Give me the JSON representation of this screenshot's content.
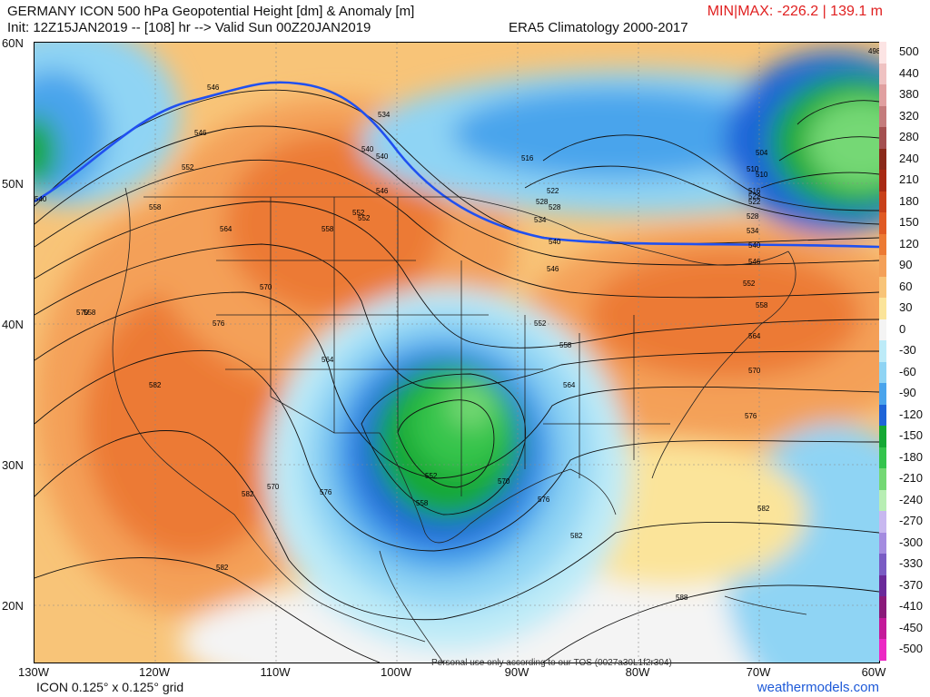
{
  "header": {
    "title": "GERMANY ICON 500 hPa Geopotential Height [dm] & Anomaly [m]",
    "init_line": "Init: 12Z15JAN2019 -- [108] hr --> Valid Sun 00Z20JAN2019",
    "climatology": "ERA5 Climatology 2000-2017",
    "minmax": "MIN|MAX: -226.2 | 139.1 m"
  },
  "footer": {
    "grid_info": "ICON 0.125° x 0.125° grid",
    "disclaimer": "Personal use only according to our TOS (0027a30L1f2r304)",
    "website": "weathermodels.com"
  },
  "axes": {
    "lat_labels": [
      "60N",
      "50N",
      "40N",
      "30N",
      "20N"
    ],
    "lon_labels": [
      "130W",
      "120W",
      "110W",
      "100W",
      "90W",
      "80W",
      "70W",
      "60W"
    ]
  },
  "legend": {
    "labels": [
      "500",
      "440",
      "380",
      "320",
      "280",
      "240",
      "210",
      "180",
      "150",
      "120",
      "90",
      "60",
      "30",
      "0",
      "-30",
      "-60",
      "-90",
      "-120",
      "-150",
      "-180",
      "-210",
      "-240",
      "-270",
      "-300",
      "-330",
      "-370",
      "-410",
      "-450",
      "-500"
    ],
    "colors": [
      "#fce4e4",
      "#efc2c2",
      "#e0a0a0",
      "#c47c7c",
      "#a45050",
      "#8a2a1a",
      "#a82a14",
      "#c8401a",
      "#e05a24",
      "#ec7a34",
      "#f4a058",
      "#f8c478",
      "#fbe49a",
      "#f4f4f4",
      "#bdebf8",
      "#8fd4f4",
      "#4aa4ec",
      "#1e64d8",
      "#14a834",
      "#34c44c",
      "#74d874",
      "#b8eeb4",
      "#c8b8f0",
      "#a48ce0",
      "#7a5cc4",
      "#6a2a9a",
      "#8a1a7a",
      "#c41a9a",
      "#ec28c4"
    ]
  },
  "map": {
    "contour_labels": [
      "546",
      "546",
      "552",
      "558",
      "564",
      "570",
      "576",
      "582",
      "582",
      "582",
      "582",
      "540",
      "534",
      "540",
      "546",
      "552",
      "558",
      "558",
      "564",
      "570",
      "570",
      "576",
      "582",
      "588",
      "516",
      "522",
      "528",
      "534",
      "540",
      "546",
      "552",
      "558",
      "552",
      "558",
      "564",
      "570",
      "576",
      "564",
      "570",
      "576",
      "504",
      "510",
      "516",
      "522",
      "528",
      "534",
      "540",
      "546",
      "552",
      "558",
      "552",
      "540",
      "528",
      "522",
      "510",
      "498"
    ],
    "highlight_contour": "546"
  }
}
